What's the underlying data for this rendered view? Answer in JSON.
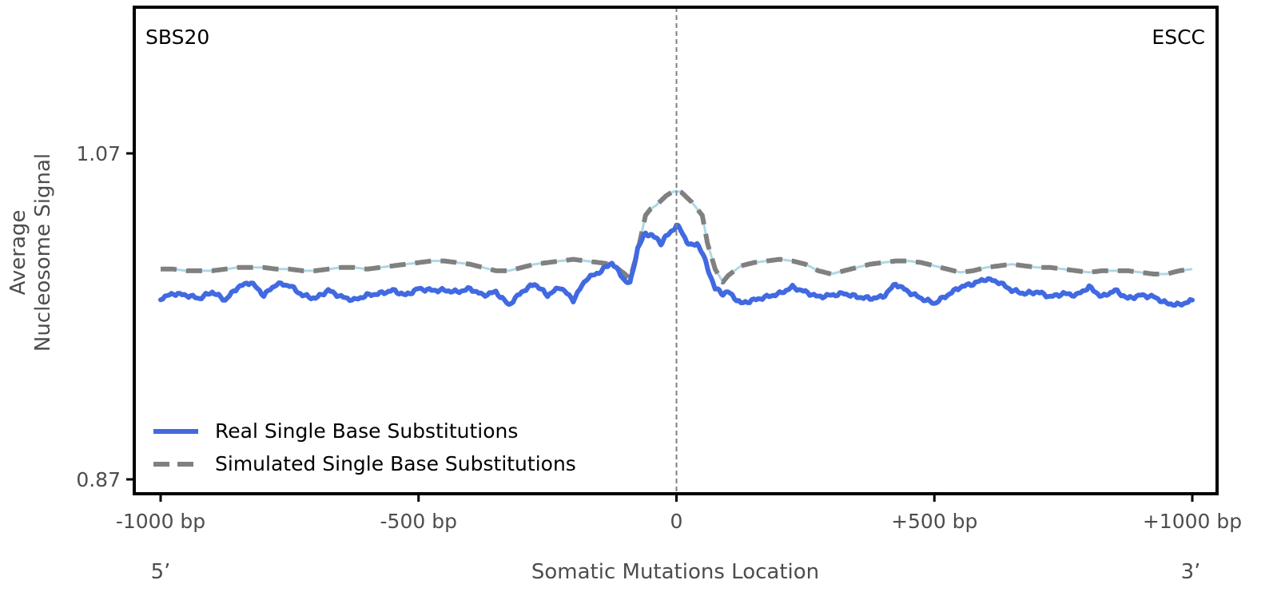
{
  "chart_data": {
    "type": "line",
    "top_left_label": "SBS20",
    "top_right_label": "ESCC",
    "xlabel": "Somatic Mutations Location",
    "ylabel_lines": [
      "Average",
      "Nucleosome Signal"
    ],
    "x_end_labels": {
      "left": "5’",
      "right": "3’"
    },
    "xlim": [
      -1000,
      1000
    ],
    "ylim": [
      0.86,
      1.09
    ],
    "x_ticks": [
      {
        "value": -1000,
        "label": "-1000 bp"
      },
      {
        "value": -500,
        "label": "-500 bp"
      },
      {
        "value": 0,
        "label": "0"
      },
      {
        "value": 500,
        "label": "+500 bp"
      },
      {
        "value": 1000,
        "label": "+1000 bp"
      }
    ],
    "y_ticks": [
      {
        "value": 1.07,
        "label": "1.07"
      },
      {
        "value": 0.87,
        "label": "0.87"
      }
    ],
    "vline_x": 0,
    "grid": false,
    "legend_position": "lower-left",
    "series": [
      {
        "name": "Real Single Base Substitutions",
        "color": "#4169e1",
        "style": "solid",
        "x": [
          -1000,
          -975,
          -950,
          -925,
          -900,
          -875,
          -850,
          -825,
          -800,
          -775,
          -750,
          -725,
          -700,
          -675,
          -650,
          -625,
          -600,
          -575,
          -550,
          -525,
          -500,
          -475,
          -450,
          -425,
          -400,
          -375,
          -350,
          -325,
          -300,
          -275,
          -250,
          -225,
          -200,
          -175,
          -150,
          -125,
          -100,
          -90,
          -75,
          -60,
          -50,
          -40,
          -30,
          -20,
          -10,
          0,
          10,
          20,
          30,
          40,
          50,
          60,
          75,
          90,
          100,
          125,
          150,
          175,
          200,
          225,
          250,
          275,
          300,
          325,
          350,
          375,
          400,
          425,
          450,
          475,
          500,
          525,
          550,
          575,
          600,
          625,
          650,
          675,
          700,
          725,
          750,
          775,
          800,
          825,
          850,
          875,
          900,
          925,
          950,
          975,
          1000
        ],
        "y": [
          0.981,
          0.984,
          0.983,
          0.981,
          0.985,
          0.98,
          0.988,
          0.991,
          0.983,
          0.99,
          0.989,
          0.983,
          0.981,
          0.986,
          0.982,
          0.98,
          0.983,
          0.984,
          0.986,
          0.983,
          0.987,
          0.986,
          0.986,
          0.985,
          0.987,
          0.983,
          0.985,
          0.977,
          0.985,
          0.99,
          0.983,
          0.988,
          0.98,
          0.993,
          0.997,
          1.003,
          0.992,
          0.99,
          1.012,
          1.021,
          1.02,
          1.018,
          1.015,
          1.019,
          1.022,
          1.026,
          1.022,
          1.016,
          1.013,
          1.015,
          1.009,
          1.0,
          0.987,
          0.984,
          0.985,
          0.978,
          0.98,
          0.982,
          0.984,
          0.988,
          0.985,
          0.982,
          0.983,
          0.984,
          0.982,
          0.981,
          0.982,
          0.99,
          0.985,
          0.981,
          0.978,
          0.983,
          0.988,
          0.99,
          0.993,
          0.991,
          0.986,
          0.984,
          0.985,
          0.982,
          0.984,
          0.983,
          0.988,
          0.982,
          0.986,
          0.981,
          0.983,
          0.982,
          0.978,
          0.977,
          0.98
        ]
      },
      {
        "name": "Simulated Single Base Substitutions",
        "color": "#808080",
        "style": "dashed",
        "x": [
          -1000,
          -975,
          -950,
          -925,
          -900,
          -875,
          -850,
          -825,
          -800,
          -775,
          -750,
          -725,
          -700,
          -675,
          -650,
          -625,
          -600,
          -575,
          -550,
          -525,
          -500,
          -475,
          -450,
          -425,
          -400,
          -375,
          -350,
          -325,
          -300,
          -275,
          -250,
          -225,
          -200,
          -175,
          -150,
          -125,
          -100,
          -90,
          -75,
          -60,
          -50,
          -40,
          -30,
          -20,
          -10,
          0,
          10,
          20,
          30,
          40,
          50,
          60,
          75,
          90,
          100,
          125,
          150,
          175,
          200,
          225,
          250,
          275,
          300,
          325,
          350,
          375,
          400,
          425,
          450,
          475,
          500,
          525,
          550,
          575,
          600,
          625,
          650,
          675,
          700,
          725,
          750,
          775,
          800,
          825,
          850,
          875,
          900,
          925,
          950,
          975,
          1000
        ],
        "y": [
          0.999,
          0.999,
          0.998,
          0.998,
          0.998,
          0.999,
          1.0,
          1.0,
          1.0,
          0.999,
          0.999,
          0.998,
          0.998,
          0.999,
          1.0,
          1.0,
          0.999,
          1.0,
          1.001,
          1.002,
          1.003,
          1.004,
          1.004,
          1.003,
          1.002,
          1.0,
          0.998,
          0.998,
          1.0,
          1.002,
          1.003,
          1.004,
          1.005,
          1.004,
          1.003,
          1.002,
          0.996,
          0.993,
          1.01,
          1.032,
          1.036,
          1.038,
          1.041,
          1.044,
          1.046,
          1.047,
          1.046,
          1.043,
          1.04,
          1.036,
          1.032,
          1.015,
          0.999,
          0.991,
          0.995,
          1.001,
          1.003,
          1.004,
          1.005,
          1.004,
          1.002,
          0.998,
          0.996,
          0.998,
          1.0,
          1.002,
          1.003,
          1.004,
          1.004,
          1.003,
          1.001,
          0.999,
          0.997,
          0.998,
          1.0,
          1.001,
          1.002,
          1.001,
          1.0,
          1.0,
          0.999,
          0.998,
          0.997,
          0.998,
          0.998,
          0.998,
          0.997,
          0.996,
          0.996,
          0.998,
          0.999
        ]
      }
    ]
  }
}
